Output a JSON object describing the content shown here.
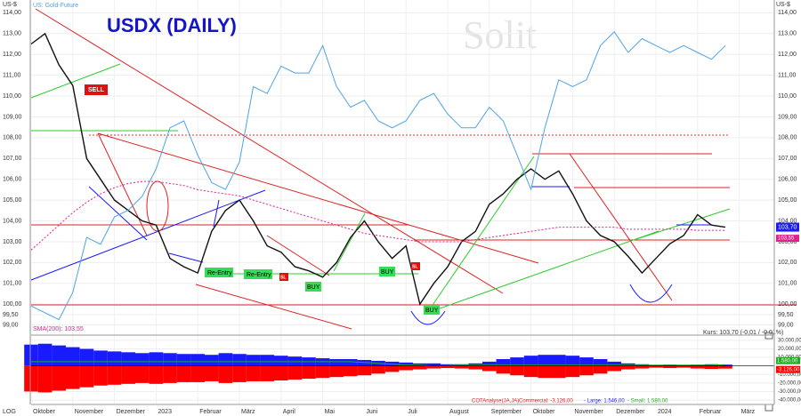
{
  "chart_data": {
    "type": "line",
    "title": "USDX (DAILY)",
    "watermark": "Solit",
    "y_unit_label": "US-$",
    "scale_label": "LOG",
    "categories": [
      "Oktober",
      null,
      null,
      "November",
      null,
      null,
      "Dezember",
      null,
      null,
      "2023",
      null,
      null,
      "Februar",
      null,
      null,
      "März",
      null,
      null,
      "April",
      null,
      null,
      "Mai",
      null,
      null,
      "Juni",
      null,
      null,
      "Juli",
      null,
      null,
      "August",
      null,
      null,
      "September",
      null,
      null,
      "Oktober",
      null,
      null,
      "November",
      null,
      null,
      "Dezember",
      null,
      null,
      "2024",
      null,
      null,
      "Februar",
      null,
      null,
      "März"
    ],
    "series": [
      {
        "color": "#111111",
        "values": [
          112.5,
          113.0,
          111.5,
          110.5,
          107.0,
          106.0,
          105.0,
          104.5,
          104.0,
          103.8,
          102.2,
          101.8,
          101.5,
          103.5,
          104.5,
          105.0,
          104.0,
          102.8,
          102.5,
          101.8,
          101.6,
          101.3,
          102.0,
          103.2,
          104.0,
          103.0,
          102.2,
          102.8,
          100.0,
          101.0,
          101.8,
          103.0,
          103.5,
          104.8,
          105.3,
          106.0,
          106.5,
          106.0,
          106.4,
          105.3,
          104.0,
          103.3,
          103.0,
          102.3,
          101.5,
          102.2,
          102.9,
          103.3,
          104.3,
          103.8,
          103.7,
          null
        ]
      },
      {
        "name": "SMA(200): 103,55",
        "color": "#e0208c",
        "dashed": true,
        "values": [
          102.6,
          103.2,
          103.8,
          104.4,
          104.9,
          105.3,
          105.6,
          105.8,
          105.9,
          105.9,
          105.8,
          105.7,
          105.5,
          105.4,
          105.3,
          105.2,
          105.0,
          104.8,
          104.6,
          104.4,
          104.2,
          104.0,
          103.8,
          103.6,
          103.4,
          103.3,
          103.2,
          103.1,
          103.0,
          103.0,
          103.0,
          103.0,
          103.1,
          103.2,
          103.3,
          103.4,
          103.5,
          103.6,
          103.7,
          103.7,
          103.7,
          103.7,
          103.7,
          103.6,
          103.6,
          103.6,
          103.6,
          103.6,
          103.55,
          103.55,
          103.55,
          null
        ]
      },
      {
        "name": "US: Gold-Future",
        "color": "#4da3e6",
        "axis": "y2",
        "values": [
          1660,
          1650,
          1640,
          1680,
          1760,
          1750,
          1790,
          1800,
          1820,
          1860,
          1920,
          1930,
          1880,
          1840,
          1830,
          1870,
          1980,
          1970,
          2010,
          2000,
          2000,
          2040,
          1980,
          1950,
          1960,
          1930,
          1920,
          1930,
          1960,
          1970,
          1940,
          1920,
          1920,
          1950,
          1930,
          1880,
          1830,
          1920,
          1990,
          1980,
          1990,
          2040,
          2060,
          2030,
          2050,
          2040,
          2030,
          2040,
          2030,
          2020,
          2040,
          null
        ]
      }
    ],
    "ylim": [
      98.6,
      114.4
    ],
    "yticks": [
      {
        "value": 99,
        "label": "99,00"
      },
      {
        "value": 99.5,
        "label": "99,50"
      },
      {
        "value": 100,
        "label": "100,00"
      },
      {
        "value": 101,
        "label": "101,00"
      },
      {
        "value": 102,
        "label": "102,00"
      },
      {
        "value": 103,
        "label": "103,00"
      },
      {
        "value": 104,
        "label": "104,00"
      },
      {
        "value": 105,
        "label": "105,00"
      },
      {
        "value": 106,
        "label": "106,00"
      },
      {
        "value": 107,
        "label": "107,00"
      },
      {
        "value": 108,
        "label": "108,00"
      },
      {
        "value": 109,
        "label": "109,00"
      },
      {
        "value": 110,
        "label": "110,00"
      },
      {
        "value": 111,
        "label": "111,00"
      },
      {
        "value": 112,
        "label": "112,00"
      },
      {
        "value": 113,
        "label": "113,00"
      },
      {
        "value": 114,
        "label": "114,00"
      }
    ],
    "y2lim": [
      1620,
      2100
    ],
    "last_price": {
      "value": 103.7,
      "label": "103,70"
    },
    "last_sma": {
      "value": 103.55,
      "label": "103,55"
    },
    "quote": "Kurs: 103,70 (-0,01 / -0,01%)",
    "annotations": [
      "SELL",
      "Re-Entry",
      "Re-Entry",
      "SL",
      "BUY",
      "BUY",
      "SL",
      "BUY"
    ],
    "cot": {
      "type": "bar",
      "title": "COTAnalyse(JA,JA)",
      "ylim": [
        -42000,
        33000
      ],
      "yticks": [
        {
          "value": 30000,
          "label": "30.000,00"
        },
        {
          "value": 20000,
          "label": "20.000,00"
        },
        {
          "value": 10000,
          "label": "10.000,00"
        },
        {
          "value": -10000,
          "label": "-10.000,00"
        },
        {
          "value": -20000,
          "label": "-20.000,00"
        },
        {
          "value": -30000,
          "label": "-30.000,00"
        },
        {
          "value": -40000,
          "label": "-40.000,00"
        }
      ],
      "series": [
        {
          "name": "Commercial: -3.126,00",
          "color": "#ff0000",
          "last_label": "-3.126,00",
          "values": [
            -30000,
            -31000,
            -29000,
            -27000,
            -25000,
            -23000,
            -22000,
            -21000,
            -20000,
            -21000,
            -20000,
            -19000,
            -19000,
            -18000,
            -20000,
            -19000,
            -18000,
            -18000,
            -17000,
            -16000,
            -15000,
            -14000,
            -13000,
            -12000,
            -11000,
            -9000,
            -7000,
            -5000,
            -4000,
            -3000,
            -2500,
            -3000,
            -4000,
            -6000,
            -9000,
            -11000,
            -13000,
            -14000,
            -14000,
            -13000,
            -11000,
            -9000,
            -6000,
            -4000,
            -3000,
            -2000,
            -2500,
            -2000,
            -3000,
            -3500,
            -3126,
            null
          ]
        },
        {
          "name": "- Large: 1.546,00",
          "color": "#1a1aff",
          "values": [
            25000,
            26000,
            24000,
            22000,
            20000,
            18000,
            17000,
            16000,
            15000,
            16000,
            15000,
            14000,
            14000,
            13000,
            15000,
            14000,
            13000,
            13000,
            12000,
            11000,
            10000,
            9000,
            8000,
            8000,
            7000,
            6000,
            5000,
            4000,
            3000,
            3000,
            2000,
            2000,
            3000,
            5000,
            8000,
            10000,
            12000,
            13000,
            13000,
            12000,
            10000,
            8000,
            5000,
            3000,
            2000,
            1000,
            1500,
            1000,
            1500,
            2000,
            1546,
            null
          ]
        },
        {
          "name": "- Small: 1.580,00",
          "color": "#22aa22",
          "last_label": "1.580,00",
          "values": [
            5000,
            5000,
            5000,
            5000,
            5000,
            5000,
            5000,
            5000,
            5000,
            5000,
            5000,
            5000,
            5000,
            5000,
            5000,
            5000,
            5000,
            5000,
            5000,
            5000,
            5000,
            5000,
            5000,
            5000,
            4000,
            3000,
            2000,
            1000,
            1000,
            0,
            500,
            1000,
            1000,
            1000,
            1000,
            1000,
            1000,
            1000,
            1000,
            1000,
            1000,
            1000,
            1000,
            1000,
            1000,
            1000,
            1000,
            1000,
            1000,
            1000,
            1580,
            null
          ]
        }
      ]
    }
  }
}
